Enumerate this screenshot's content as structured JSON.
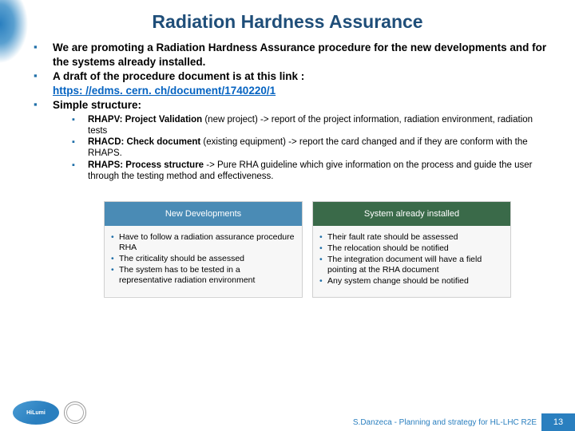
{
  "title": "Radiation Hardness Assurance",
  "bullets": {
    "b1": "We are promoting a Radiation Hardness Assurance procedure for the new developments and for the systems already installed.",
    "b2": "A draft of the procedure document is at this link :",
    "b2_link": "https: //edms. cern. ch/document/1740220/1",
    "b3": "Simple structure:"
  },
  "sub": {
    "s1_bold": "RHAPV: Project Validation",
    "s1_rest": " (new project) -> report of the project information, radiation environment, radiation tests",
    "s2_bold": "RHACD: Check document ",
    "s2_rest": " (existing equipment) -> report the card changed and if they are conform with the RHAPS.",
    "s3_bold": "RHAPS: Process structure",
    "s3_rest": " -> Pure RHA guideline which give information on the process and guide the user through the testing method and effectiveness."
  },
  "boxes": {
    "left": {
      "header": "New Developments",
      "header_bg": "#4a8bb5",
      "items": [
        "Have to follow a radiation assurance procedure RHA",
        "The criticality should be assessed",
        "The system has to be tested in a representative radiation environment"
      ]
    },
    "right": {
      "header": "System already installed",
      "header_bg": "#3a6a49",
      "items": [
        "Their fault rate should be assessed",
        "The relocation should be notified",
        "The integration document will have a field pointing at the RHA document",
        "Any system change should be notified"
      ]
    }
  },
  "footer": {
    "hilumi": "HiLumi",
    "cern": "CERN",
    "text": "S.Danzeca -  Planning and strategy for HL-LHC R2E",
    "page": "13"
  },
  "colors": {
    "title": "#1f4e79",
    "bullet": "#1f6fa8",
    "link": "#0563c1",
    "footer_blue": "#2a7fbf"
  }
}
